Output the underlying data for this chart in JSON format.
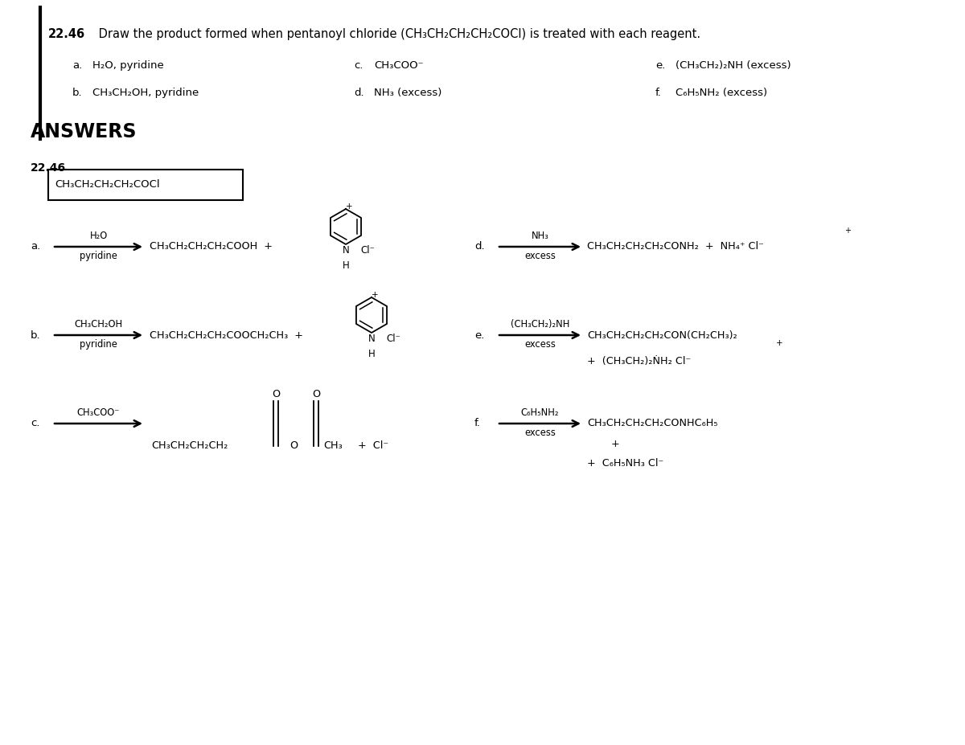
{
  "bg_color": "#ffffff",
  "text_color": "#000000",
  "question_num": "22.46",
  "question_text": " Draw the product formed when pentanoyl chloride (CH₃CH₂CH₂CH₂COCl) is treated with each reagent.",
  "rea": "a.",
  "reb": "b.",
  "rec": "c.",
  "red": "d.",
  "ree": "e.",
  "ref": "f.",
  "ra_text": "H₂O, pyridine",
  "rb_text": "CH₃CH₂OH, pyridine",
  "rc_text": "CH₃COO⁻",
  "rd_text": "NH₃ (excess)",
  "re_text": "(CH₃CH₂)₂NH (excess)",
  "rf_text": "C₆H₅NH₂ (excess)",
  "answers_label": "ANSWERS",
  "prob_num": "22.46",
  "sm": "CH₃CH₂CH₂CH₂COCl",
  "prod_a": "CH₃CH₂CH₂CH₂COOH  +",
  "prod_b": "CH₃CH₂CH₂CH₂COOCH₂CH₃  +",
  "prod_c_chain1": "CH₃CH₂CH₂CH₂",
  "prod_c_chain2": "CH₃",
  "prod_c_suffix": "+  Cl⁻",
  "prod_d": "CH₃CH₂CH₂CH₂CONH₂  +  NH₄⁺ Cl⁻",
  "prod_e1": "CH₃CH₂CH₂CH₂CON(CH₂CH₃)₂",
  "prod_e2": "+  (CH₃CH₂)₂ṄH₂ Cl⁻",
  "prod_f1": "CH₃CH₂CH₂CH₂CONHC₆H₅",
  "prod_f2": "+",
  "prod_f3": "+  C₆H₅NH₃ Cl⁻",
  "arrow_above_a": "H₂O",
  "arrow_below_a": "pyridine",
  "arrow_above_b": "CH₃CH₂OH",
  "arrow_below_b": "pyridine",
  "arrow_above_c": "CH₃COO⁻",
  "arrow_above_d": "NH₃",
  "arrow_below_d": "excess",
  "arrow_above_e": "(CH₃CH₂)₂NH",
  "arrow_below_e": "excess",
  "arrow_above_f": "C₆H₅NH₂",
  "arrow_below_f": "excess",
  "pyH_label": "⁺",
  "N_label": "N",
  "H_label": "H",
  "Cl_label": "Cl⁻",
  "plus_label": "+"
}
